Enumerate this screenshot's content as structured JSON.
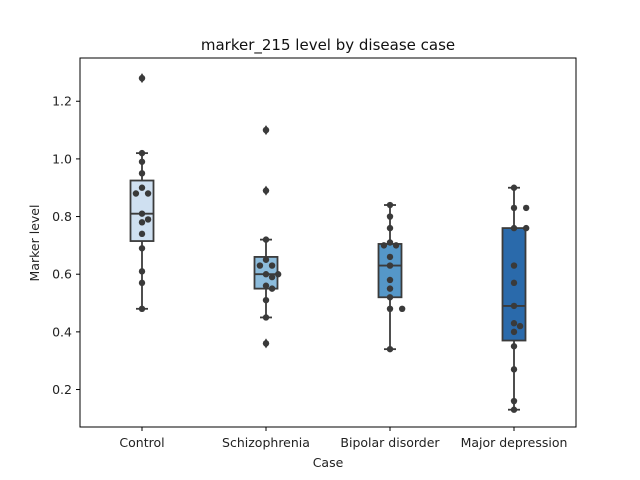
{
  "chart_data": {
    "type": "box",
    "title": "marker_215 level by disease case",
    "xlabel": "Case",
    "ylabel": "Marker level",
    "ylim": [
      0.07,
      1.35
    ],
    "yticks": [
      "0.2",
      "0.4",
      "0.6",
      "0.8",
      "1.0",
      "1.2"
    ],
    "grid": false,
    "categories": [
      "Control",
      "Schizophrenia",
      "Bipolar disorder",
      "Major depression"
    ],
    "box_colors": [
      "#cfe0f1",
      "#8cbcdc",
      "#5597c8",
      "#2a6aab"
    ],
    "boxes": [
      {
        "category": "Control",
        "q1": 0.715,
        "median": 0.81,
        "q3": 0.925,
        "whisker_low": 0.48,
        "whisker_high": 1.02,
        "outliers": [
          1.28
        ]
      },
      {
        "category": "Schizophrenia",
        "q1": 0.55,
        "median": 0.6,
        "q3": 0.66,
        "whisker_low": 0.45,
        "whisker_high": 0.72,
        "outliers": [
          0.36,
          0.89,
          1.1
        ]
      },
      {
        "category": "Bipolar disorder",
        "q1": 0.52,
        "median": 0.63,
        "q3": 0.705,
        "whisker_low": 0.34,
        "whisker_high": 0.84,
        "outliers": []
      },
      {
        "category": "Major depression",
        "q1": 0.37,
        "median": 0.49,
        "q3": 0.76,
        "whisker_low": 0.13,
        "whisker_high": 0.9,
        "outliers": []
      }
    ],
    "points": [
      {
        "category": "Control",
        "values": [
          1.28,
          1.02,
          0.99,
          0.95,
          0.9,
          0.88,
          0.88,
          0.81,
          0.79,
          0.78,
          0.74,
          0.69,
          0.61,
          0.57,
          0.48
        ]
      },
      {
        "category": "Schizophrenia",
        "values": [
          1.1,
          0.89,
          0.72,
          0.65,
          0.63,
          0.63,
          0.6,
          0.6,
          0.59,
          0.56,
          0.55,
          0.51,
          0.45,
          0.36
        ]
      },
      {
        "category": "Bipolar disorder",
        "values": [
          0.84,
          0.8,
          0.76,
          0.71,
          0.7,
          0.7,
          0.66,
          0.63,
          0.58,
          0.55,
          0.52,
          0.48,
          0.48,
          0.34
        ]
      },
      {
        "category": "Major depression",
        "values": [
          0.9,
          0.83,
          0.83,
          0.76,
          0.76,
          0.63,
          0.57,
          0.49,
          0.43,
          0.42,
          0.4,
          0.35,
          0.27,
          0.16,
          0.13
        ]
      }
    ],
    "point_color": "#3a3a3a"
  }
}
